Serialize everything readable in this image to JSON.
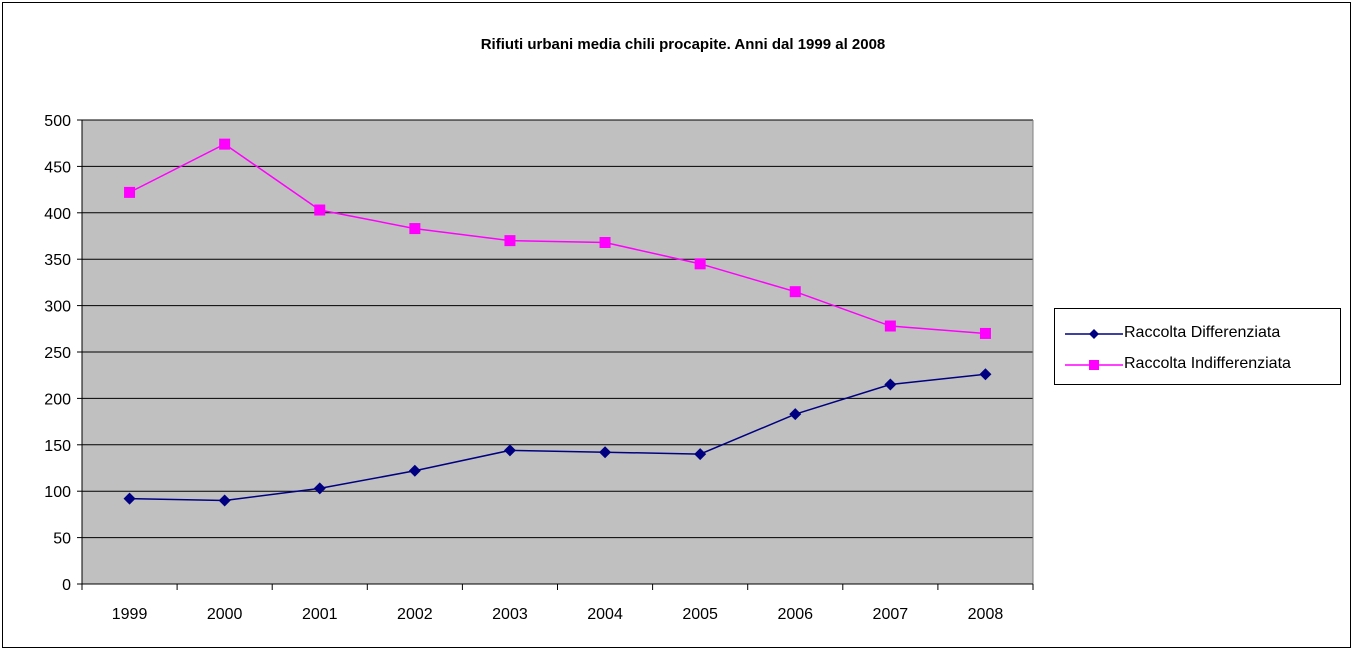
{
  "chart_data": {
    "type": "line",
    "title": "Rifiuti urbani media chili procapite. Anni dal 1999 al 2008",
    "xlabel": "",
    "ylabel": "",
    "categories": [
      "1999",
      "2000",
      "2001",
      "2002",
      "2003",
      "2004",
      "2005",
      "2006",
      "2007",
      "2008"
    ],
    "ylim": [
      0,
      500
    ],
    "yticks": [
      0,
      50,
      100,
      150,
      200,
      250,
      300,
      350,
      400,
      450,
      500
    ],
    "grid": true,
    "legend_position": "right",
    "plot_background": "#c0c0c0",
    "series": [
      {
        "name": "Raccolta Differenziata",
        "color": "#000080",
        "marker": "diamond",
        "values": [
          92,
          90,
          103,
          122,
          144,
          142,
          140,
          183,
          215,
          226
        ]
      },
      {
        "name": "Raccolta Indifferenziata",
        "color": "#ff00ff",
        "marker": "square",
        "values": [
          422,
          474,
          403,
          383,
          370,
          368,
          345,
          315,
          278,
          270
        ]
      }
    ]
  }
}
